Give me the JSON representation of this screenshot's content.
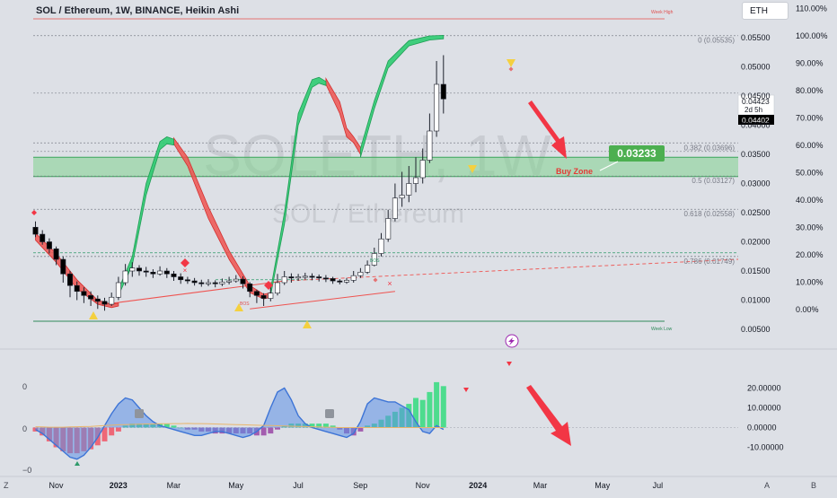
{
  "header": {
    "title": "SOL / Ethereum, 1W, BINANCE, Heikin Ashi",
    "currency_button": "ETH"
  },
  "watermark": {
    "ticker": "SOLETH, 1W",
    "name": "SOL / Ethereum"
  },
  "labels": {
    "week_high": "Week High",
    "week_low": "Week Low",
    "buy_zone": "Buy Zone",
    "bos": "BOS",
    "target_price": "0.03233",
    "last_price_1": "0.04423",
    "countdown": "2d 5h",
    "last_price_2": "0.04402"
  },
  "fib_levels": [
    {
      "label": "0 (0.05535)",
      "value": 0.05535
    },
    {
      "label": "0.382 (0.03696)",
      "value": 0.03696
    },
    {
      "label": "0.5 (0.03127)",
      "value": 0.03127
    },
    {
      "label": "0.618 (0.02558)",
      "value": 0.02558
    },
    {
      "label": "0.786 (0.01749)",
      "value": 0.01749
    }
  ],
  "colors": {
    "background": "#dde0e6",
    "bull_candle": "#ffffff",
    "bear_candle": "#000000",
    "green_band": "#2ecc71",
    "red_band": "#ef5350",
    "buy_zone": "#7fd18e",
    "arrow": "#f23645",
    "label_green": "#4caf50",
    "momentum_line": "#5b8fe6"
  },
  "chart_data": [
    {
      "type": "candlestick",
      "title": "SOL / Ethereum, 1W, BINANCE, Heikin Ashi",
      "ylim": [
        0.005,
        0.058
      ],
      "y_ticks": [
        "0.05500",
        "0.05000",
        "0.04500",
        "0.04000",
        "0.03500",
        "0.03000",
        "0.02500",
        "0.02000",
        "0.01500",
        "0.01000",
        "0.00500"
      ],
      "y_tick_values": [
        0.055,
        0.05,
        0.045,
        0.04,
        0.035,
        0.03,
        0.025,
        0.02,
        0.015,
        0.01,
        0.005
      ],
      "pct_ticks": [
        "110.00%",
        "100.00%",
        "90.00%",
        "80.00%",
        "70.00%",
        "60.00%",
        "50.00%",
        "40.00%",
        "30.00%",
        "20.00%",
        "10.00%",
        "0.00%"
      ],
      "pct_tick_values": [
        110,
        100,
        90,
        80,
        70,
        60,
        50,
        40,
        30,
        20,
        10,
        0
      ],
      "pct_base_price": 0.0084,
      "pct_top_price": 0.0553,
      "x_ticks": [
        "Nov",
        "2023",
        "Mar",
        "May",
        "Jul",
        "Sep",
        "Nov",
        "2024",
        "Mar",
        "May",
        "Jul"
      ],
      "x_tick_weeks": [
        0,
        9,
        17,
        26,
        35,
        44,
        53,
        61,
        70,
        79,
        87
      ],
      "candles": [
        [
          0.0225,
          0.0213,
          0.0235,
          0.0208
        ],
        [
          0.0213,
          0.02,
          0.022,
          0.0195
        ],
        [
          0.02,
          0.0188,
          0.0206,
          0.018
        ],
        [
          0.0188,
          0.017,
          0.0192,
          0.016
        ],
        [
          0.017,
          0.0145,
          0.0175,
          0.013
        ],
        [
          0.0145,
          0.0125,
          0.015,
          0.0105
        ],
        [
          0.0125,
          0.0115,
          0.0132,
          0.01
        ],
        [
          0.0115,
          0.0108,
          0.0122,
          0.0095
        ],
        [
          0.0108,
          0.0102,
          0.0115,
          0.009
        ],
        [
          0.0102,
          0.0098,
          0.0108,
          0.0085
        ],
        [
          0.0098,
          0.0093,
          0.0104,
          0.0082
        ],
        [
          0.0093,
          0.0105,
          0.0113,
          0.009
        ],
        [
          0.0105,
          0.013,
          0.014,
          0.01
        ],
        [
          0.013,
          0.015,
          0.0162,
          0.0125
        ],
        [
          0.015,
          0.0155,
          0.0165,
          0.014
        ],
        [
          0.0155,
          0.015,
          0.016,
          0.0142
        ],
        [
          0.015,
          0.0148,
          0.0157,
          0.014
        ],
        [
          0.0148,
          0.0145,
          0.0153,
          0.0138
        ],
        [
          0.0145,
          0.015,
          0.0158,
          0.0142
        ],
        [
          0.015,
          0.0145,
          0.0155,
          0.0138
        ],
        [
          0.0145,
          0.014,
          0.015,
          0.0133
        ],
        [
          0.014,
          0.0135,
          0.0146,
          0.0128
        ],
        [
          0.0135,
          0.0133,
          0.014,
          0.0128
        ],
        [
          0.0133,
          0.013,
          0.0138,
          0.0125
        ],
        [
          0.013,
          0.0128,
          0.0135,
          0.0123
        ],
        [
          0.0128,
          0.013,
          0.0136,
          0.0124
        ],
        [
          0.013,
          0.0128,
          0.0134,
          0.0122
        ],
        [
          0.0128,
          0.0131,
          0.0137,
          0.0124
        ],
        [
          0.0131,
          0.0133,
          0.014,
          0.0127
        ],
        [
          0.0133,
          0.0136,
          0.0143,
          0.013
        ],
        [
          0.0136,
          0.0128,
          0.0141,
          0.012
        ],
        [
          0.0128,
          0.0115,
          0.0131,
          0.0105
        ],
        [
          0.0115,
          0.0108,
          0.0118,
          0.0095
        ],
        [
          0.0108,
          0.0103,
          0.0112,
          0.009
        ],
        [
          0.0103,
          0.0112,
          0.0125,
          0.0098
        ],
        [
          0.0112,
          0.013,
          0.0145,
          0.0108
        ],
        [
          0.013,
          0.014,
          0.015,
          0.0126
        ],
        [
          0.014,
          0.0138,
          0.0146,
          0.013
        ],
        [
          0.0138,
          0.014,
          0.0145,
          0.0133
        ],
        [
          0.014,
          0.0141,
          0.0147,
          0.0135
        ],
        [
          0.0141,
          0.014,
          0.0146,
          0.0134
        ],
        [
          0.014,
          0.0138,
          0.0144,
          0.0132
        ],
        [
          0.0138,
          0.0137,
          0.0143,
          0.0131
        ],
        [
          0.0137,
          0.0133,
          0.014,
          0.0128
        ],
        [
          0.0133,
          0.0131,
          0.0136,
          0.0127
        ],
        [
          0.0131,
          0.0134,
          0.0138,
          0.0128
        ],
        [
          0.0134,
          0.0142,
          0.015,
          0.013
        ],
        [
          0.0142,
          0.0148,
          0.0155,
          0.0138
        ],
        [
          0.0148,
          0.016,
          0.0168,
          0.0145
        ],
        [
          0.016,
          0.018,
          0.019,
          0.0158
        ],
        [
          0.018,
          0.0205,
          0.0215,
          0.0175
        ],
        [
          0.0205,
          0.024,
          0.0255,
          0.02
        ],
        [
          0.024,
          0.0275,
          0.03,
          0.0235
        ],
        [
          0.0275,
          0.028,
          0.032,
          0.026
        ],
        [
          0.028,
          0.03,
          0.033,
          0.0268
        ],
        [
          0.03,
          0.031,
          0.0345,
          0.0285
        ],
        [
          0.031,
          0.034,
          0.036,
          0.03
        ],
        [
          0.034,
          0.039,
          0.042,
          0.0335
        ],
        [
          0.039,
          0.047,
          0.051,
          0.038
        ],
        [
          0.047,
          0.0445,
          0.052,
          0.042
        ]
      ],
      "green_band": [
        {
          "upper": [
            [
              12,
              0.0118
            ],
            [
              14,
              0.0175
            ],
            [
              16,
              0.03
            ],
            [
              18,
              0.0372
            ],
            [
              19,
              0.038
            ],
            [
              20,
              0.0376
            ]
          ],
          "lower": [
            [
              12,
              0.0108
            ],
            [
              14,
              0.016
            ],
            [
              16,
              0.028
            ],
            [
              18,
              0.0358
            ],
            [
              19,
              0.0368
            ],
            [
              20,
              0.0366
            ]
          ]
        },
        {
          "upper": [
            [
              34,
              0.0118
            ],
            [
              36,
              0.025
            ],
            [
              38,
              0.042
            ],
            [
              40,
              0.0478
            ],
            [
              41,
              0.0482
            ],
            [
              42,
              0.0475
            ]
          ],
          "lower": [
            [
              34,
              0.0108
            ],
            [
              36,
              0.023
            ],
            [
              38,
              0.04
            ],
            [
              40,
              0.0465
            ],
            [
              41,
              0.0472
            ],
            [
              42,
              0.0468
            ]
          ]
        },
        {
          "upper": [
            [
              47,
              0.036
            ],
            [
              49,
              0.0442
            ],
            [
              51,
              0.051
            ],
            [
              54,
              0.0545
            ],
            [
              57,
              0.0553
            ],
            [
              59,
              0.0554
            ]
          ],
          "lower": [
            [
              47,
              0.0345
            ],
            [
              49,
              0.0428
            ],
            [
              51,
              0.0498
            ],
            [
              54,
              0.0536
            ],
            [
              57,
              0.0546
            ],
            [
              59,
              0.0548
            ]
          ]
        }
      ],
      "red_band": [
        {
          "upper": [
            [
              0,
              0.0215
            ],
            [
              3,
              0.018
            ],
            [
              6,
              0.0135
            ],
            [
              9,
              0.01
            ],
            [
              11,
              0.0093
            ],
            [
              12,
              0.0095
            ]
          ],
          "lower": [
            [
              0,
              0.0203
            ],
            [
              3,
              0.0165
            ],
            [
              6,
              0.012
            ],
            [
              9,
              0.0093
            ],
            [
              11,
              0.0087
            ],
            [
              12,
              0.009
            ]
          ]
        },
        {
          "upper": [
            [
              20,
              0.0378
            ],
            [
              22,
              0.0345
            ],
            [
              25,
              0.026
            ],
            [
              28,
              0.0185
            ],
            [
              31,
              0.0125
            ],
            [
              33,
              0.011
            ],
            [
              34,
              0.0113
            ]
          ],
          "lower": [
            [
              20,
              0.0368
            ],
            [
              22,
              0.033
            ],
            [
              25,
              0.024
            ],
            [
              28,
              0.017
            ],
            [
              31,
              0.0113
            ],
            [
              33,
              0.0102
            ],
            [
              34,
              0.0105
            ]
          ]
        },
        {
          "upper": [
            [
              42,
              0.048
            ],
            [
              44,
              0.044
            ],
            [
              45,
              0.0395
            ],
            [
              46,
              0.038
            ],
            [
              47,
              0.0362
            ]
          ],
          "lower": [
            [
              42,
              0.047
            ],
            [
              44,
              0.042
            ],
            [
              45,
              0.038
            ],
            [
              46,
              0.037
            ],
            [
              47,
              0.035
            ]
          ]
        }
      ]
    },
    {
      "type": "bar",
      "title": "",
      "ylim": [
        -15,
        25
      ],
      "y_ticks": [
        "20.00000",
        "10.00000",
        "0.00000",
        "-10.00000"
      ],
      "y_tick_values": [
        20,
        10,
        0,
        -10
      ],
      "left_ticks": [
        "0",
        "0",
        "−0"
      ],
      "values": [
        -2,
        -4,
        -7,
        -10,
        -12,
        -13,
        -13,
        -12,
        -11,
        -9,
        -7,
        -4,
        -2,
        1,
        2,
        2,
        2,
        2,
        2,
        2,
        1,
        0,
        -1,
        -1,
        -2,
        -2,
        -3,
        -3,
        -3,
        -3,
        -3,
        -3,
        -4,
        -4,
        -3,
        -1,
        1,
        2,
        2,
        2,
        2,
        2,
        2,
        1,
        -1,
        -3,
        -4,
        -2,
        1,
        2,
        4,
        6,
        8,
        10,
        12,
        15,
        14,
        18,
        23,
        21
      ],
      "momentum_line": [
        -1,
        -3,
        -6,
        -9,
        -12,
        -15,
        -16,
        -14,
        -10,
        -5,
        1,
        7,
        12,
        15,
        14,
        10,
        6,
        3,
        1,
        0,
        -1,
        -2,
        -3,
        -4,
        -4,
        -3,
        -2,
        -2,
        -3,
        -4,
        -5,
        -4,
        -2,
        1,
        10,
        18,
        20,
        14,
        6,
        2,
        0,
        -1,
        -2,
        -3,
        -4,
        -5,
        -3,
        3,
        12,
        15,
        14,
        13,
        13,
        11,
        9,
        3,
        -2,
        -3,
        1,
        -1
      ],
      "signal_line": [
        0.4,
        0.3,
        0.2,
        0.2,
        0.2,
        0.3,
        0.4,
        0.5,
        0.6,
        0.8,
        1.0,
        1.2,
        1.4,
        1.5,
        1.6,
        1.7,
        1.8,
        1.8,
        1.9,
        1.9,
        2.0,
        2.0,
        2.1,
        2.0,
        2.0,
        1.9,
        1.8,
        1.7,
        1.6,
        1.5,
        1.4,
        1.3,
        1.2,
        1.1,
        1.0,
        0.9,
        0.8,
        0.7,
        0.6,
        0.5,
        0.4,
        0.3,
        0.2,
        0.1,
        0.0,
        0.0,
        0.0,
        0.0,
        0.0,
        0.0,
        0.0,
        0.0,
        0.0,
        0.0,
        0.0,
        0.0,
        0.0,
        0.0,
        0.0,
        0.0
      ]
    }
  ],
  "footer": {
    "z_label": "Z",
    "a_label": "A",
    "b_label": "B"
  }
}
